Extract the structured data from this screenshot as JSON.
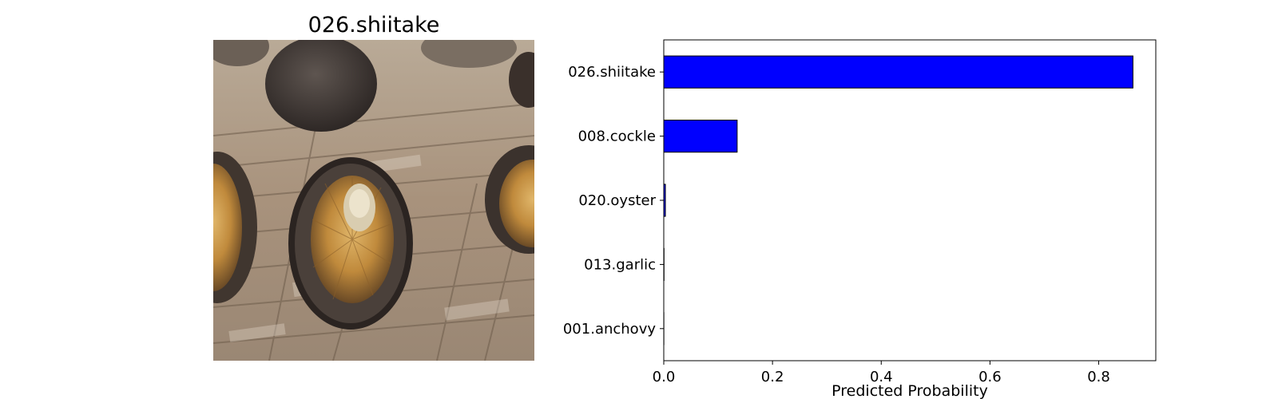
{
  "image_panel": {
    "title": "026.shiitake",
    "icon": "mushroom-photo"
  },
  "chart_data": {
    "type": "bar",
    "orientation": "horizontal",
    "title": "",
    "xlabel": "Predicted Probability",
    "ylabel": "",
    "categories": [
      "026.shiitake",
      "008.cockle",
      "020.oyster",
      "013.garlic",
      "001.anchovy"
    ],
    "values": [
      0.863,
      0.135,
      0.003,
      0.0005,
      0.0002
    ],
    "xlim": [
      0.0,
      0.905
    ],
    "xticks": [
      0.0,
      0.2,
      0.4,
      0.6,
      0.8
    ],
    "xtick_labels": [
      "0.0",
      "0.2",
      "0.4",
      "0.6",
      "0.8"
    ],
    "bar_color": "#0000ff",
    "edge_color": "#000000",
    "grid": false,
    "legend": "none"
  }
}
